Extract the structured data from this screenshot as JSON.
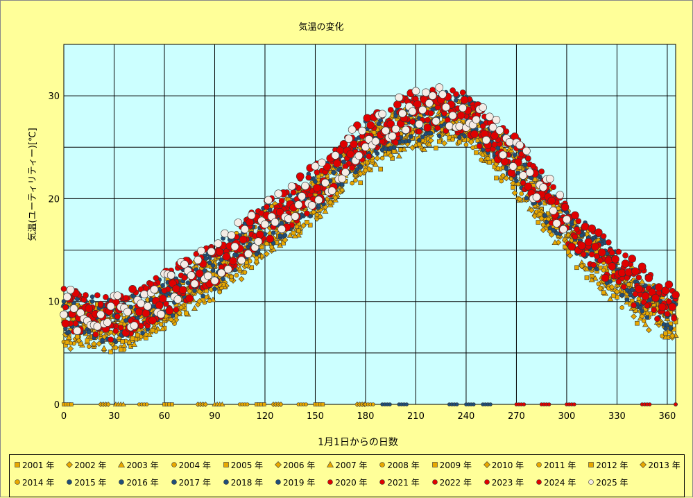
{
  "chart_data": {
    "type": "scatter",
    "title": "気温の変化",
    "xlabel": "1月1日からの日数",
    "ylabel": "気温(ユーティリティー)[℃]",
    "xlim": [
      0,
      365
    ],
    "ylim": [
      0,
      35
    ],
    "x_ticks": [
      0,
      30,
      60,
      90,
      120,
      150,
      180,
      210,
      240,
      270,
      300,
      330,
      360
    ],
    "y_ticks": [
      0,
      10,
      20,
      30
    ],
    "grid": true,
    "plot_background": "#ccffff",
    "page_background": "#ffff99",
    "legend_position": "bottom",
    "description": "Daily temperature readings for years 2001–2025 plotted against day of year; values rise from ~8℃ in January to ~28℃ in August then fall to ~9℃ by late December; missing readings plotted at 0.",
    "seasonal_profile": {
      "x": [
        0,
        15,
        30,
        45,
        60,
        75,
        90,
        105,
        120,
        135,
        150,
        165,
        180,
        195,
        210,
        225,
        240,
        255,
        270,
        285,
        300,
        315,
        330,
        345,
        365
      ],
      "y": [
        8.5,
        8.0,
        7.8,
        8.5,
        10.0,
        11.5,
        13.0,
        15.0,
        17.0,
        18.5,
        20.5,
        22.5,
        25.0,
        26.5,
        27.5,
        28.0,
        27.5,
        25.5,
        23.0,
        20.0,
        17.0,
        14.5,
        12.5,
        10.5,
        8.5
      ]
    },
    "zero_value_days": [
      0,
      22,
      31,
      45,
      60,
      80,
      90,
      105,
      115,
      125,
      140,
      150,
      175,
      180,
      190,
      200,
      230,
      240,
      250,
      270,
      285,
      300,
      345,
      365
    ],
    "series": [
      {
        "name": "2001 年",
        "marker": "square",
        "color": "#e8a800",
        "variant": 1
      },
      {
        "name": "2002 年",
        "marker": "diamond",
        "color": "#e8a800",
        "variant": 2
      },
      {
        "name": "2003 年",
        "marker": "triangle",
        "color": "#e8a800",
        "variant": 3
      },
      {
        "name": "2004 年",
        "marker": "circle",
        "color": "#e8a800",
        "variant": 4
      },
      {
        "name": "2005 年",
        "marker": "square",
        "color": "#e8a800",
        "variant": 5
      },
      {
        "name": "2006 年",
        "marker": "diamond",
        "color": "#e8a800",
        "variant": 6
      },
      {
        "name": "2007 年",
        "marker": "triangle",
        "color": "#e8a800",
        "variant": 7
      },
      {
        "name": "2008 年",
        "marker": "circle",
        "color": "#e8a800",
        "variant": 8
      },
      {
        "name": "2009 年",
        "marker": "square",
        "color": "#e8a800",
        "variant": 9
      },
      {
        "name": "2010 年",
        "marker": "diamond",
        "color": "#e8a800",
        "variant": 10
      },
      {
        "name": "2011 年",
        "marker": "circle",
        "color": "#e8a800",
        "variant": 11
      },
      {
        "name": "2012 年",
        "marker": "square",
        "color": "#e8a800",
        "variant": 12
      },
      {
        "name": "2013 年",
        "marker": "diamond",
        "color": "#e8a800",
        "variant": 13
      },
      {
        "name": "2014 年",
        "marker": "circle",
        "color": "#e8a800",
        "variant": 14
      },
      {
        "name": "2015 年",
        "marker": "circle",
        "color": "#1f4e79",
        "variant": 15
      },
      {
        "name": "2016 年",
        "marker": "circle",
        "color": "#1f4e79",
        "variant": 16
      },
      {
        "name": "2017 年",
        "marker": "circle",
        "color": "#1f4e79",
        "variant": 17
      },
      {
        "name": "2018 年",
        "marker": "circle",
        "color": "#1f4e79",
        "variant": 18
      },
      {
        "name": "2019 年",
        "marker": "circle",
        "color": "#1f4e79",
        "variant": 19
      },
      {
        "name": "2020 年",
        "marker": "circle",
        "color": "#e00000",
        "variant": 20
      },
      {
        "name": "2021 年",
        "marker": "circle",
        "color": "#e00000",
        "variant": 21
      },
      {
        "name": "2022 年",
        "marker": "circle",
        "color": "#e00000",
        "variant": 22
      },
      {
        "name": "2023 年",
        "marker": "circle",
        "color": "#e00000",
        "variant": 23
      },
      {
        "name": "2024 年",
        "marker": "circle-large",
        "color": "#e00000",
        "variant": 24
      },
      {
        "name": "2025 年",
        "marker": "circle-large",
        "color": "#f5ece6",
        "variant": 25
      }
    ]
  }
}
